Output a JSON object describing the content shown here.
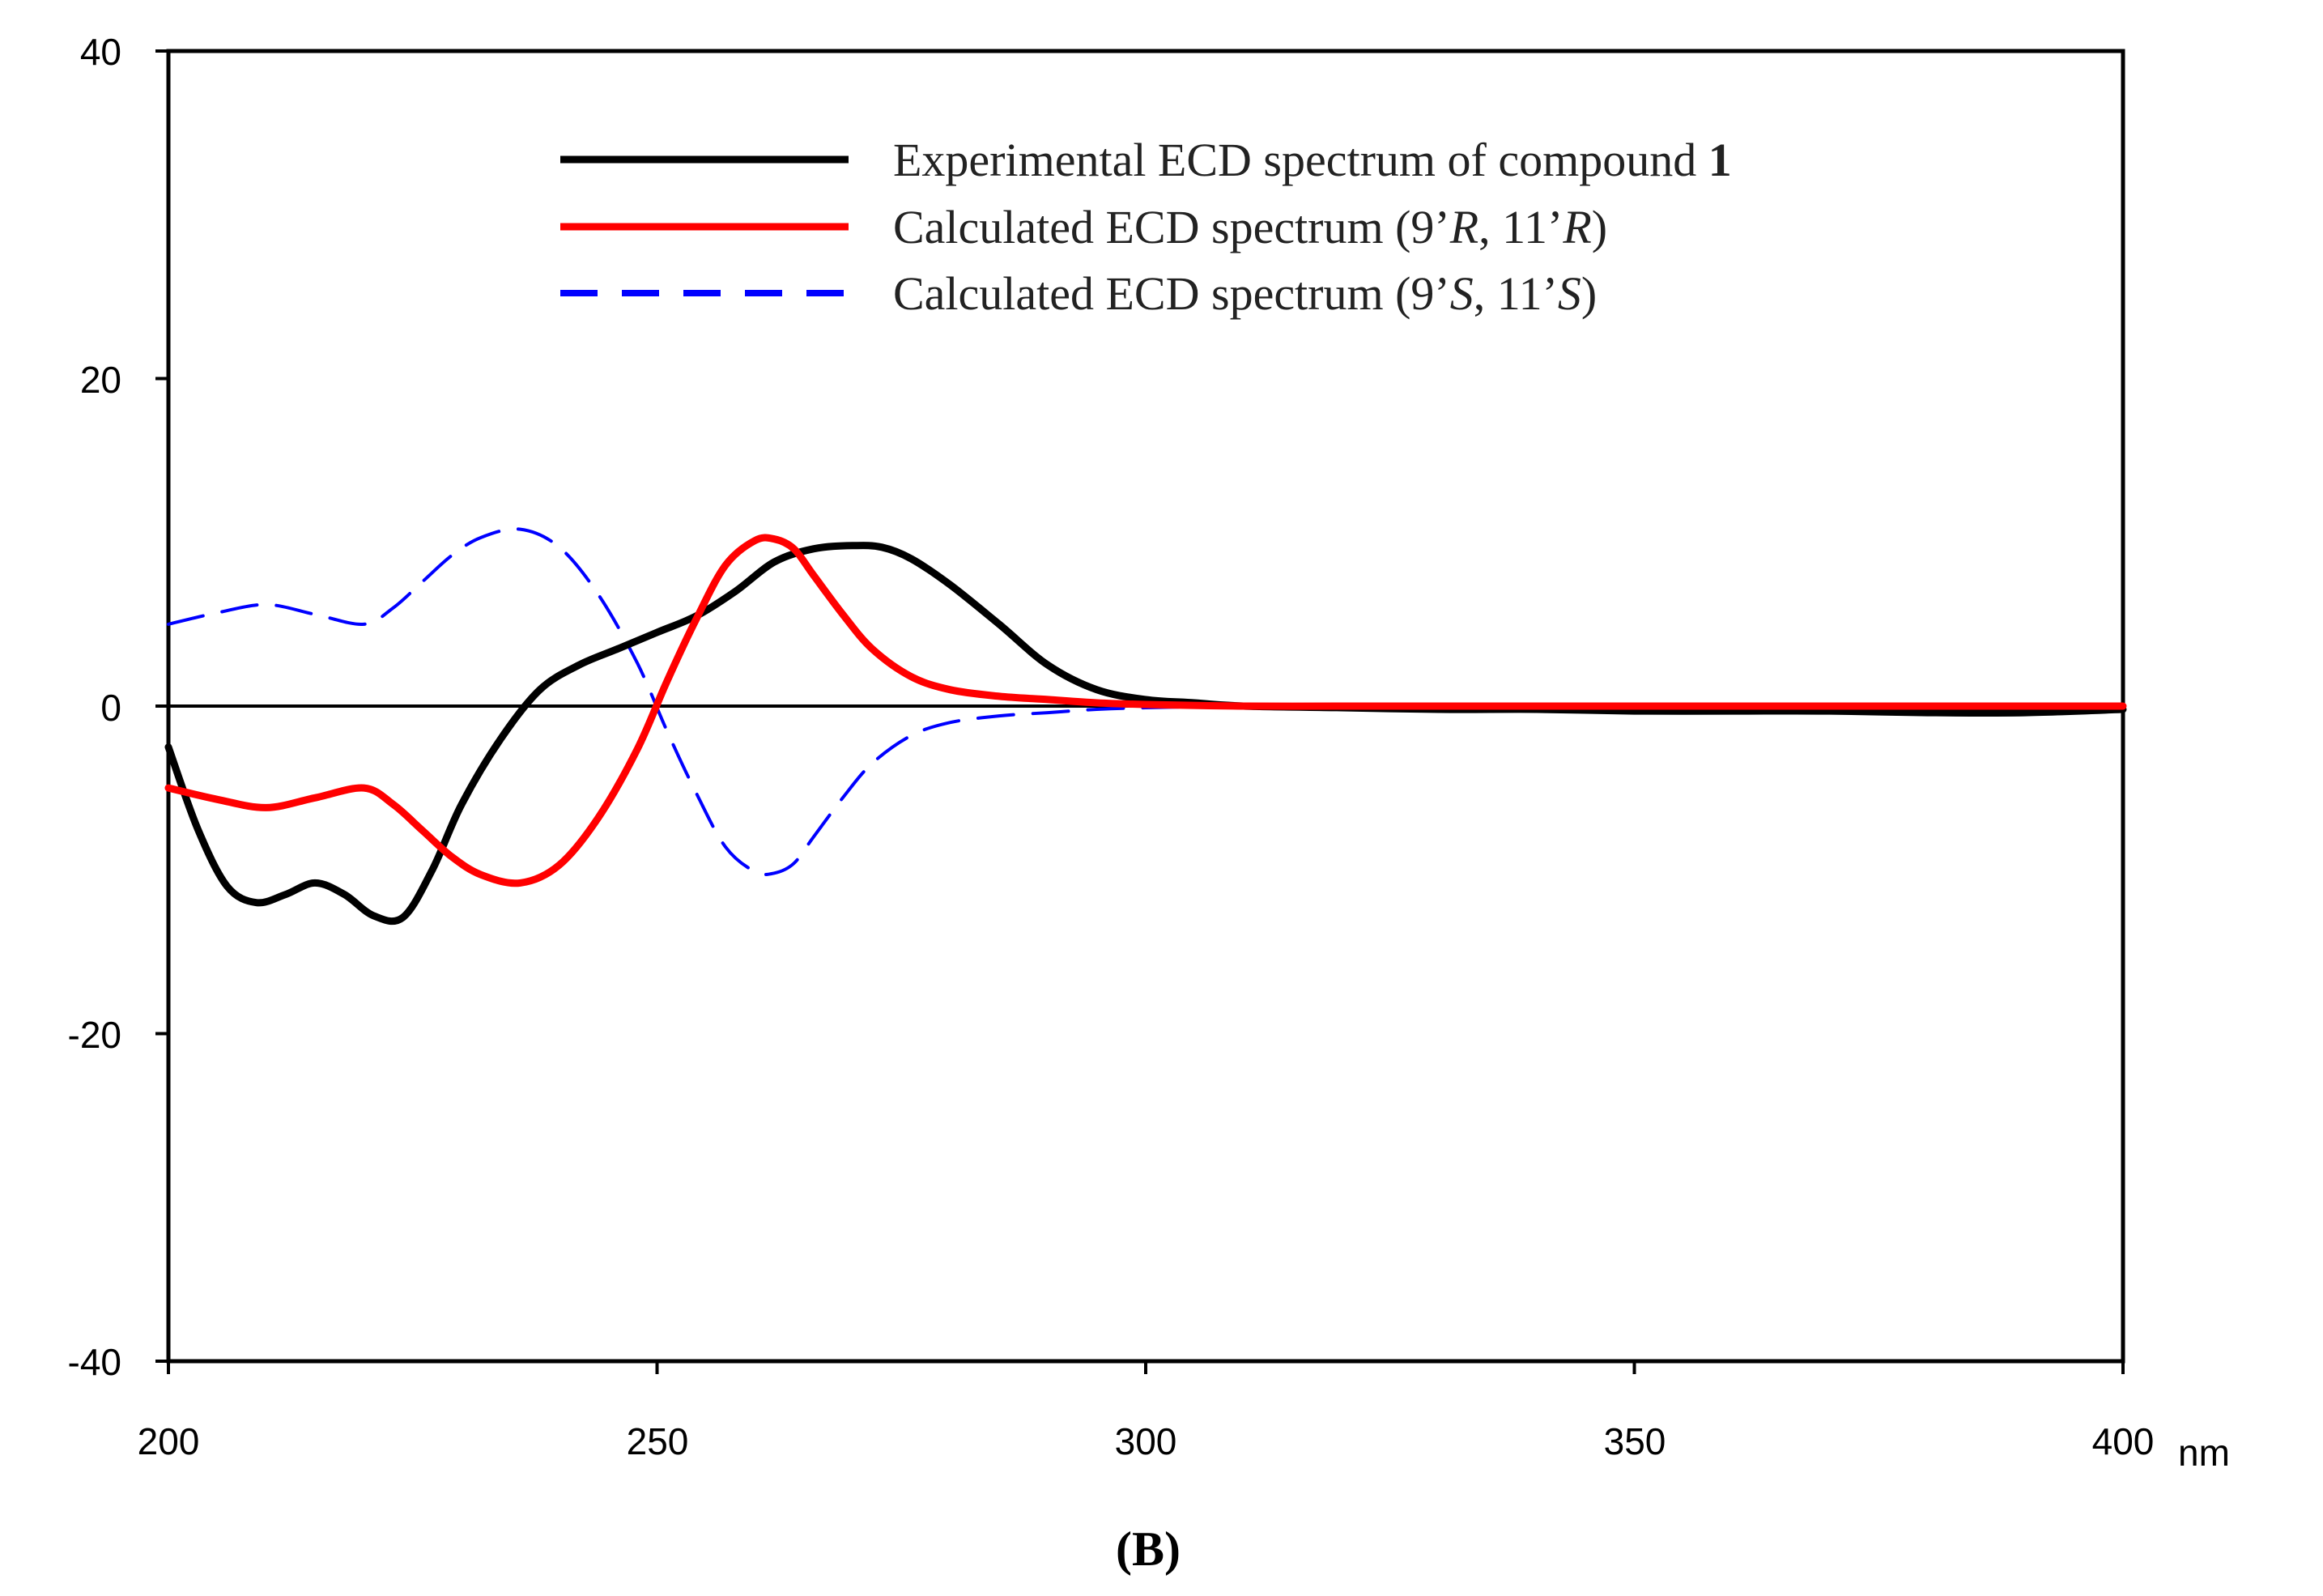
{
  "chart_data": {
    "type": "line",
    "title": "",
    "xlabel": "",
    "ylabel": "",
    "x_unit": "nm",
    "xlim": [
      200,
      400
    ],
    "ylim": [
      -40,
      40
    ],
    "xticks": [
      "200",
      "250",
      "300",
      "350",
      "400"
    ],
    "yticks": [
      "40",
      "20",
      "0",
      "-20",
      "-40"
    ],
    "grid": false,
    "legend_position": "top-right",
    "panel_label": "(B)",
    "series": [
      {
        "name": "Experimental ECD spectrum of compound 1",
        "legend_prefix": "Experimental ECD spectrum of compound ",
        "legend_bold": "1",
        "color": "#000000",
        "dash": "solid",
        "x": [
          200,
          203,
          206,
          209,
          212,
          215,
          218,
          221,
          224,
          227,
          230,
          234,
          238,
          242,
          246,
          250,
          254,
          258,
          262,
          266,
          270,
          273,
          276,
          280,
          285,
          290,
          295,
          300,
          305,
          310,
          320,
          330,
          340,
          350,
          360,
          370,
          380,
          390,
          400
        ],
        "values": [
          -2.5,
          -7.5,
          -11,
          -12,
          -11.5,
          -10.8,
          -11.5,
          -12.8,
          -12.9,
          -10,
          -6,
          -2,
          1,
          2.5,
          3.5,
          4.5,
          5.5,
          7,
          8.8,
          9.6,
          9.8,
          9.7,
          9,
          7.4,
          5,
          2.5,
          1,
          0.4,
          0.2,
          0,
          -0.1,
          -0.2,
          -0.2,
          -0.3,
          -0.3,
          -0.3,
          -0.4,
          -0.4,
          -0.2
        ]
      },
      {
        "name": "Calculated ECD spectrum (9'R, 11'R)",
        "legend_prefix": "Calculated ECD spectrum (9’",
        "legend_i1": "R",
        "legend_mid": ", 11’",
        "legend_i2": "R",
        "legend_suffix": ")",
        "color": "#ff0000",
        "dash": "solid",
        "x": [
          200,
          205,
          210,
          215,
          220,
          223,
          226,
          229,
          232,
          236,
          240,
          244,
          248,
          251,
          254,
          257,
          260,
          262,
          264,
          266,
          269,
          272,
          276,
          280,
          285,
          290,
          295,
          300,
          310,
          320,
          330,
          350,
          370,
          400
        ],
        "values": [
          -5,
          -5.7,
          -6.2,
          -5.6,
          -5,
          -6,
          -7.6,
          -9.2,
          -10.3,
          -10.8,
          -9.7,
          -6.8,
          -2.6,
          1.5,
          5.3,
          8.6,
          10.1,
          10.2,
          9.6,
          8,
          5.6,
          3.5,
          1.8,
          1,
          0.6,
          0.4,
          0.2,
          0.1,
          0,
          0,
          0,
          0,
          0,
          0
        ]
      },
      {
        "name": "Calculated ECD spectrum (9'S, 11'S)",
        "legend_prefix": "Calculated ECD spectrum (9’",
        "legend_i1": "S",
        "legend_mid": ", 11’",
        "legend_i2": "S",
        "legend_suffix": ")",
        "color": "#0000ff",
        "dash": "dashed",
        "x": [
          200,
          205,
          210,
          215,
          220,
          223,
          226,
          229,
          232,
          236,
          240,
          244,
          248,
          251,
          254,
          257,
          260,
          262,
          264,
          266,
          269,
          272,
          276,
          280,
          285,
          290,
          295,
          300,
          310,
          320,
          330,
          350,
          370,
          400
        ],
        "values": [
          5,
          5.7,
          6.2,
          5.6,
          5,
          6,
          7.6,
          9.2,
          10.3,
          10.8,
          9.7,
          6.8,
          2.6,
          -1.5,
          -5.3,
          -8.6,
          -10.1,
          -10.2,
          -9.6,
          -8,
          -5.6,
          -3.5,
          -1.8,
          -1,
          -0.6,
          -0.4,
          -0.2,
          -0.1,
          0,
          0,
          0,
          0,
          0,
          0
        ]
      }
    ]
  }
}
